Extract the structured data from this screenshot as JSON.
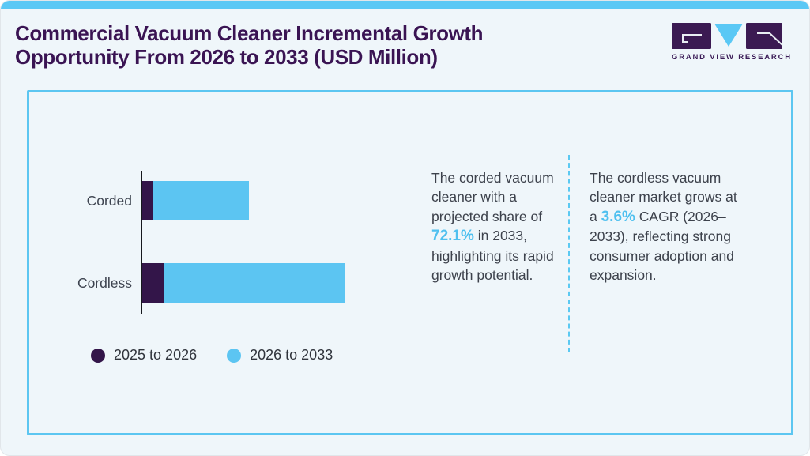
{
  "page": {
    "title": "Commercial Vacuum Cleaner Incremental Growth Opportunity From 2026 to 2033 (USD Million)"
  },
  "logo": {
    "brand": "GRAND VIEW RESEARCH"
  },
  "colors": {
    "top_strip": "#5ac8f5",
    "panel_border": "#5cc6f1",
    "title_text": "#3a1453",
    "body_text": "#3d424c",
    "highlight_text": "#4fc0ef",
    "background": "#eff6fa"
  },
  "chart_data": {
    "type": "bar",
    "orientation": "horizontal",
    "title": "Commercial Vacuum Cleaner Incremental Growth Opportunity From 2026 to 2033 (USD Million)",
    "unit": "USD Million",
    "categories": [
      "Corded",
      "Cordless"
    ],
    "series": [
      {
        "name": "2025 to 2026",
        "color": "#331549",
        "relative_values": [
          13,
          28
        ]
      },
      {
        "name": "2026 to 2033",
        "color": "#5cc5f2",
        "relative_values": [
          122,
          228
        ]
      }
    ],
    "stacked": true,
    "value_axis_shown": false,
    "data_labels_shown": false,
    "grid": false,
    "legend_position": "bottom-left",
    "notes": "No numeric axis shown; relative_values are estimated bar segment lengths in pixels (1 px per unit)."
  },
  "insights": {
    "corded": {
      "before": "The corded vacuum cleaner with a projected share of ",
      "highlight": "72.1%",
      "after": " in 2033, highlighting its rapid growth potential."
    },
    "cordless": {
      "before": "The cordless vacuum cleaner market grows at a ",
      "highlight": "3.6%",
      "after": " CAGR (2026–2033), reflecting strong consumer adoption and expansion."
    }
  }
}
